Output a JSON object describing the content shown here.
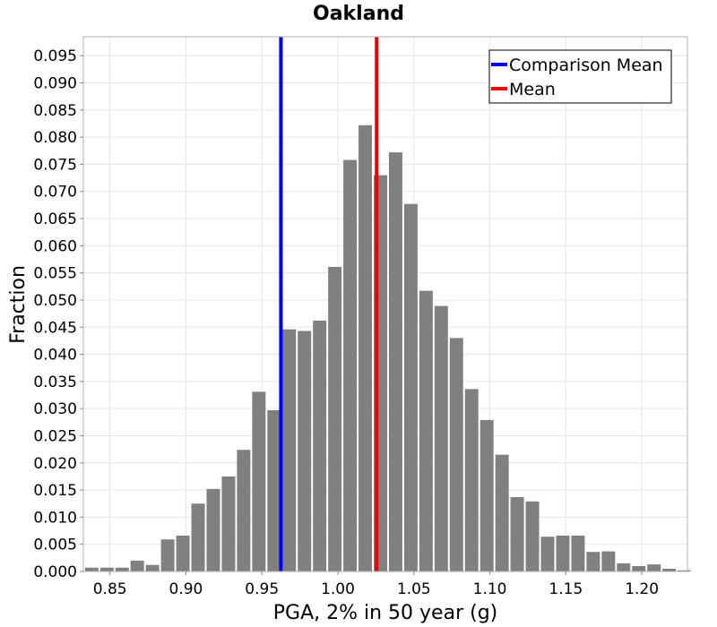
{
  "chart_data": {
    "type": "bar",
    "title": "Oakland",
    "xlabel": "PGA, 2% in 50 year (g)",
    "ylabel": "Fraction",
    "xlim": [
      0.8325,
      1.23
    ],
    "ylim": [
      0,
      0.0985
    ],
    "grid": true,
    "legend_position": "top-right",
    "bin_width": 0.01,
    "x_ticks": [
      0.85,
      0.9,
      0.95,
      1.0,
      1.05,
      1.1,
      1.15,
      1.2
    ],
    "x_tick_labels": [
      "0.85",
      "0.90",
      "0.95",
      "1.00",
      "1.05",
      "1.10",
      "1.15",
      "1.20"
    ],
    "y_ticks": [
      0,
      0.005,
      0.01,
      0.015,
      0.02,
      0.025,
      0.03,
      0.035,
      0.04,
      0.045,
      0.05,
      0.055,
      0.06,
      0.065,
      0.07,
      0.075,
      0.08,
      0.085,
      0.09,
      0.095
    ],
    "y_tick_labels": [
      "0.000",
      "0.005",
      "0.010",
      "0.015",
      "0.020",
      "0.025",
      "0.030",
      "0.035",
      "0.040",
      "0.045",
      "0.050",
      "0.055",
      "0.060",
      "0.065",
      "0.070",
      "0.075",
      "0.080",
      "0.085",
      "0.090",
      "0.095"
    ],
    "bins": [
      0.833,
      0.843,
      0.853,
      0.863,
      0.873,
      0.883,
      0.893,
      0.903,
      0.913,
      0.923,
      0.933,
      0.943,
      0.953,
      0.963,
      0.973,
      0.983,
      0.993,
      1.003,
      1.013,
      1.023,
      1.033,
      1.043,
      1.053,
      1.063,
      1.073,
      1.083,
      1.093,
      1.103,
      1.113,
      1.123,
      1.133,
      1.143,
      1.153,
      1.163,
      1.173,
      1.183,
      1.193,
      1.203,
      1.213,
      1.223
    ],
    "values": [
      0.0007,
      0.0007,
      0.0007,
      0.002,
      0.0012,
      0.0059,
      0.0066,
      0.0125,
      0.0152,
      0.0175,
      0.0224,
      0.0331,
      0.0297,
      0.0446,
      0.0443,
      0.0462,
      0.0561,
      0.0758,
      0.0822,
      0.073,
      0.0772,
      0.0677,
      0.0517,
      0.0489,
      0.043,
      0.0336,
      0.0279,
      0.0215,
      0.0137,
      0.0129,
      0.0064,
      0.0066,
      0.0066,
      0.0036,
      0.0037,
      0.0015,
      0.001,
      0.0013,
      0.0005,
      0.0002
    ],
    "bar_color": "#808080",
    "reference_lines": [
      {
        "name": "Comparison Mean",
        "x": 0.9625,
        "color": "#0000ee"
      },
      {
        "name": "Mean",
        "x": 1.0255,
        "color": "#ee0000"
      }
    ]
  }
}
